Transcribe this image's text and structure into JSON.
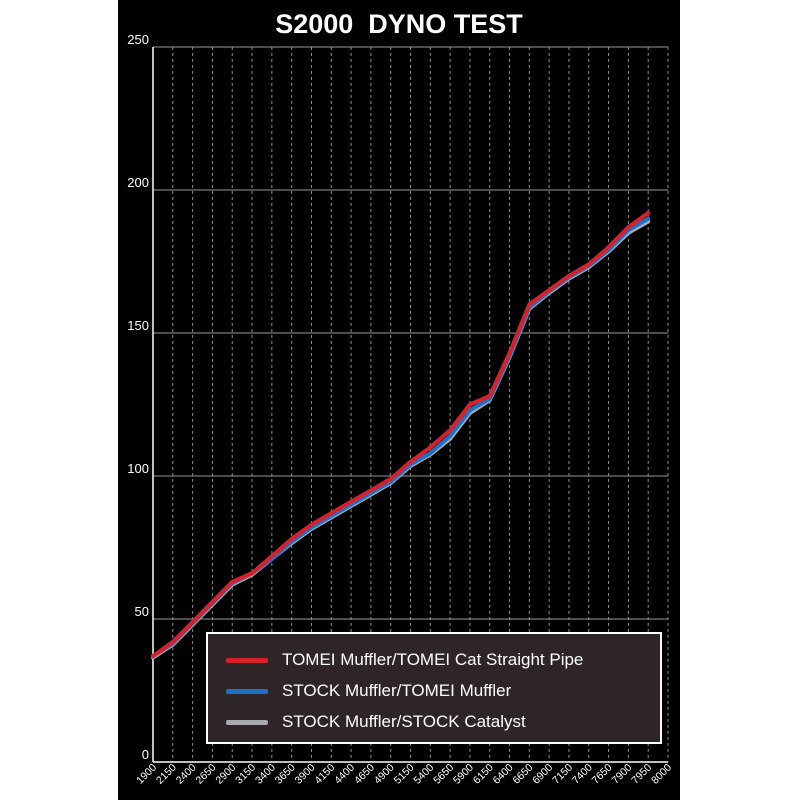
{
  "chart_data": {
    "type": "line",
    "title": "S2000  DYNO TEST",
    "xlabel": "",
    "ylabel": "",
    "ylim": [
      0,
      250
    ],
    "y_ticks": [
      "0",
      "50",
      "100",
      "150",
      "200",
      "250"
    ],
    "x": [
      1900,
      2150,
      2400,
      2650,
      2900,
      3150,
      3400,
      3650,
      3900,
      4150,
      4400,
      4650,
      4900,
      5150,
      5400,
      5650,
      5900,
      6150,
      6400,
      6650,
      6900,
      7150,
      7400,
      7650,
      7900,
      7950
    ],
    "x_tick_labels": [
      "1900",
      "2150",
      "2400",
      "2650",
      "2900",
      "3150",
      "3400",
      "3650",
      "3900",
      "4150",
      "4400",
      "4650",
      "4900",
      "5150",
      "5400",
      "5650",
      "5900",
      "6150",
      "6400",
      "6650",
      "6900",
      "7150",
      "7400",
      "7650",
      "7900",
      "7950",
      "8000"
    ],
    "grid": true,
    "legend_position": "bottom-right",
    "series": [
      {
        "name": "TOMEI Muffler/TOMEI Cat Straight Pipe",
        "color": "#d8202a",
        "values": [
          37,
          42,
          49,
          56,
          63,
          66,
          72,
          78,
          83,
          87,
          91,
          95,
          99,
          105,
          110,
          116,
          125,
          128,
          143,
          160,
          165,
          170,
          174,
          180,
          187,
          192
        ]
      },
      {
        "name": "STOCK Muffler/TOMEI Muffler",
        "color": "#1f6fc5",
        "values": [
          37,
          41.5,
          48.5,
          55.5,
          62.5,
          66,
          71,
          77,
          82,
          86,
          90,
          94,
          98,
          104,
          108,
          114,
          123,
          127,
          142,
          159,
          164.5,
          169.5,
          173.5,
          179,
          186,
          190
        ]
      },
      {
        "name": "STOCK Muffler/STOCK Catalyst",
        "color": "#a7a9ae",
        "values": [
          36.5,
          41,
          48,
          55,
          62,
          65.5,
          71,
          76.5,
          81.5,
          85.5,
          89.5,
          93.5,
          97.5,
          103.5,
          107.5,
          113,
          122,
          126.5,
          141.5,
          158.5,
          164,
          169,
          173,
          178.5,
          185,
          189
        ]
      }
    ]
  }
}
